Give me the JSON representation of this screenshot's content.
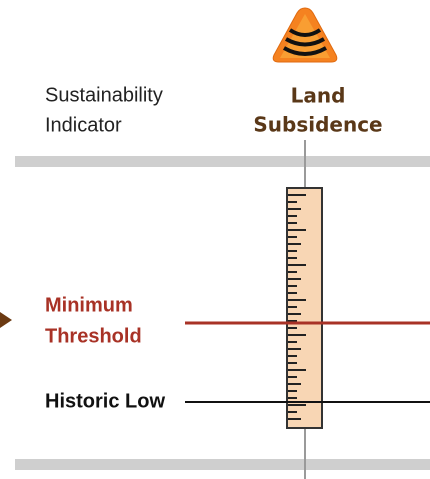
{
  "indicator_label": [
    "Sustainability",
    "Indicator"
  ],
  "column_title": [
    "Land",
    "Subsidence"
  ],
  "minimum_threshold": [
    "Minimum",
    "Threshold"
  ],
  "historic_low": "Historic Low"
}
